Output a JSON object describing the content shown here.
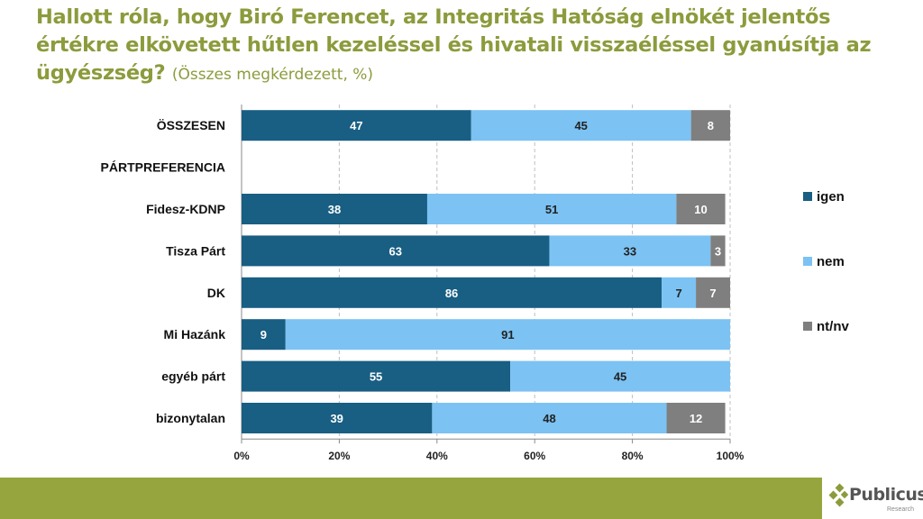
{
  "title": {
    "main": "Hallott róla, hogy Biró Ferencet, az Integritás Hatóság elnökét jelentős értékre elkövetett hűtlen kezeléssel és hivatali visszaéléssel gyanúsítja az ügyészség?",
    "subtitle": "(Összes megkérdezett, %)"
  },
  "logo": {
    "name": "Publicus",
    "sub": "Research"
  },
  "colors": {
    "igen": "#195e83",
    "nem": "#7cc2f3",
    "ntnv": "#7f7f7f",
    "title": "#8c9b3c",
    "footer": "#97a53e"
  },
  "chart_data": {
    "type": "stacked-bar-horizontal",
    "xlim": [
      0,
      100
    ],
    "xticks": [
      "0%",
      "20%",
      "40%",
      "60%",
      "80%",
      "100%"
    ],
    "grid": true,
    "legend_position": "right",
    "categories": [
      "ÖSSZESEN",
      "PÁRTPREFERENCIA",
      "Fidesz-KDNP",
      "Tisza Párt",
      "DK",
      "Mi Hazánk",
      "egyéb párt",
      "bizonytalan"
    ],
    "series": [
      {
        "name": "igen",
        "values": [
          47,
          null,
          38,
          63,
          86,
          9,
          55,
          39
        ]
      },
      {
        "name": "nem",
        "values": [
          45,
          null,
          51,
          33,
          7,
          91,
          45,
          48
        ]
      },
      {
        "name": "nt/nv",
        "values": [
          8,
          null,
          10,
          3,
          7,
          0,
          0,
          12
        ]
      }
    ]
  }
}
